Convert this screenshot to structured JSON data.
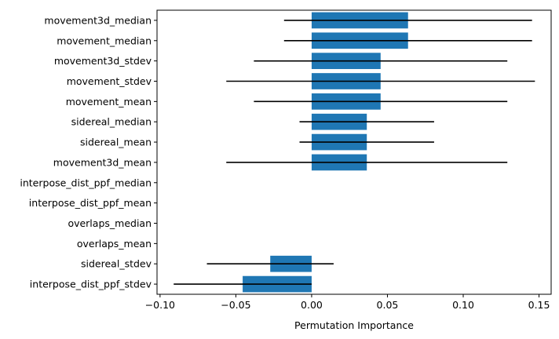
{
  "chart_data": {
    "type": "bar",
    "orientation": "horizontal",
    "title": "",
    "xlabel": "Permutation Importance",
    "ylabel": "",
    "xlim": [
      -0.102,
      0.158
    ],
    "xticks": [
      -0.1,
      -0.05,
      0.0,
      0.05,
      0.1,
      0.15
    ],
    "xtick_labels": [
      "−0.10",
      "−0.05",
      "0.00",
      "0.05",
      "0.10",
      "0.15"
    ],
    "grid": false,
    "bar_color": "#1f77b4",
    "errorbar_color": "#000000",
    "categories": [
      "movement3d_median",
      "movement_median",
      "movement3d_stdev",
      "movement_stdev",
      "movement_mean",
      "sidereal_median",
      "sidereal_mean",
      "movement3d_mean",
      "interpose_dist_ppf_median",
      "interpose_dist_ppf_mean",
      "overlaps_median",
      "overlaps_mean",
      "sidereal_stdev",
      "interpose_dist_ppf_stdev"
    ],
    "values": [
      0.0636,
      0.0636,
      0.0455,
      0.0455,
      0.0455,
      0.0364,
      0.0364,
      0.0364,
      0,
      0,
      0,
      0,
      -0.0273,
      -0.0455
    ],
    "errors": [
      0.0818,
      0.0818,
      0.0836,
      0.1018,
      0.0836,
      0.0444,
      0.0444,
      0.0927,
      0,
      0,
      0,
      0,
      0.0418,
      0.0455
    ]
  }
}
